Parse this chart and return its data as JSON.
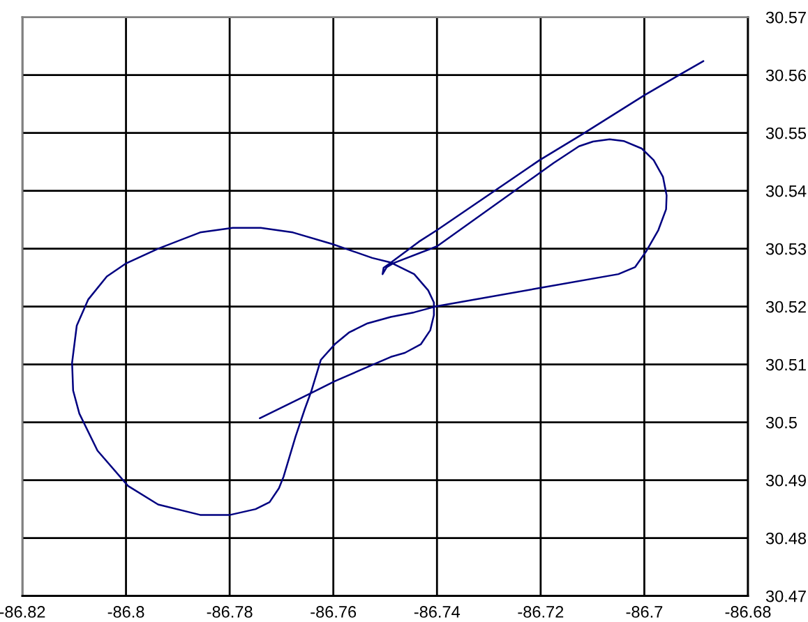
{
  "chart_data": {
    "type": "line",
    "x": [
      -86.7742,
      -86.7642,
      -86.7597,
      -86.7525,
      -86.7489,
      -86.7462,
      -86.7431,
      -86.7413,
      -86.7406,
      -86.7406,
      -86.7417,
      -86.7444,
      -86.7489,
      -86.7525,
      -86.7602,
      -86.7678,
      -86.774,
      -86.7794,
      -86.7857,
      -86.7938,
      -86.8001,
      -86.8037,
      -86.8073,
      -86.8095,
      -86.8104,
      -86.8102,
      -86.809,
      -86.8055,
      -86.7996,
      -86.7938,
      -86.7857,
      -86.7799,
      -86.775,
      -86.7723,
      -86.7705,
      -86.7696,
      -86.7673,
      -86.7655,
      -86.7642,
      -86.7624,
      -86.7597,
      -86.757,
      -86.7534,
      -86.7489,
      -86.7444,
      -86.7403,
      -86.7202,
      -86.705,
      -86.7018,
      -86.6996,
      -86.6973,
      -86.6958,
      -86.6957,
      -86.6964,
      -86.6982,
      -86.7005,
      -86.704,
      -86.7067,
      -86.7099,
      -86.7126,
      -86.7175,
      -86.74,
      -86.7484,
      -86.7497,
      -86.7505,
      -86.7503,
      -86.7492,
      -86.7435,
      -86.74,
      -86.7202,
      -86.7121,
      -86.7,
      -86.6933,
      -86.6886
    ],
    "values": [
      30.5007,
      30.5051,
      30.5071,
      30.5099,
      30.5113,
      30.512,
      30.5135,
      30.5159,
      30.5185,
      30.5207,
      30.5228,
      30.5256,
      30.5276,
      30.5284,
      30.5308,
      30.5328,
      30.5336,
      30.5336,
      30.5328,
      30.53,
      30.5274,
      30.5252,
      30.5212,
      30.5167,
      30.5103,
      30.5055,
      30.5015,
      30.4951,
      30.489,
      30.4858,
      30.484,
      30.484,
      30.485,
      30.4862,
      30.4886,
      30.4906,
      30.4975,
      30.5023,
      30.5055,
      30.5108,
      30.5135,
      30.5155,
      30.5171,
      30.5182,
      30.519,
      30.52,
      30.5232,
      30.5256,
      30.5268,
      30.5296,
      30.5332,
      30.5368,
      30.5392,
      30.5424,
      30.5453,
      30.5473,
      30.5486,
      30.5489,
      30.5485,
      30.5477,
      30.5448,
      30.5304,
      30.5275,
      30.5268,
      30.5256,
      30.5267,
      30.5274,
      30.5312,
      30.5332,
      30.5453,
      30.5497,
      30.5565,
      30.56,
      30.5624
    ],
    "color": "#000080",
    "xlim": [
      -86.82,
      -86.68
    ],
    "xticks": [
      -86.82,
      -86.8,
      -86.78,
      -86.76,
      -86.74,
      -86.72,
      -86.7,
      -86.68
    ],
    "ylim": [
      30.47,
      30.57
    ],
    "yticks": [
      30.47,
      30.48,
      30.49,
      30.5,
      30.51,
      30.52,
      30.53,
      30.54,
      30.55,
      30.56,
      30.57
    ],
    "grid": true,
    "marker": "none",
    "line_style": "solid"
  }
}
